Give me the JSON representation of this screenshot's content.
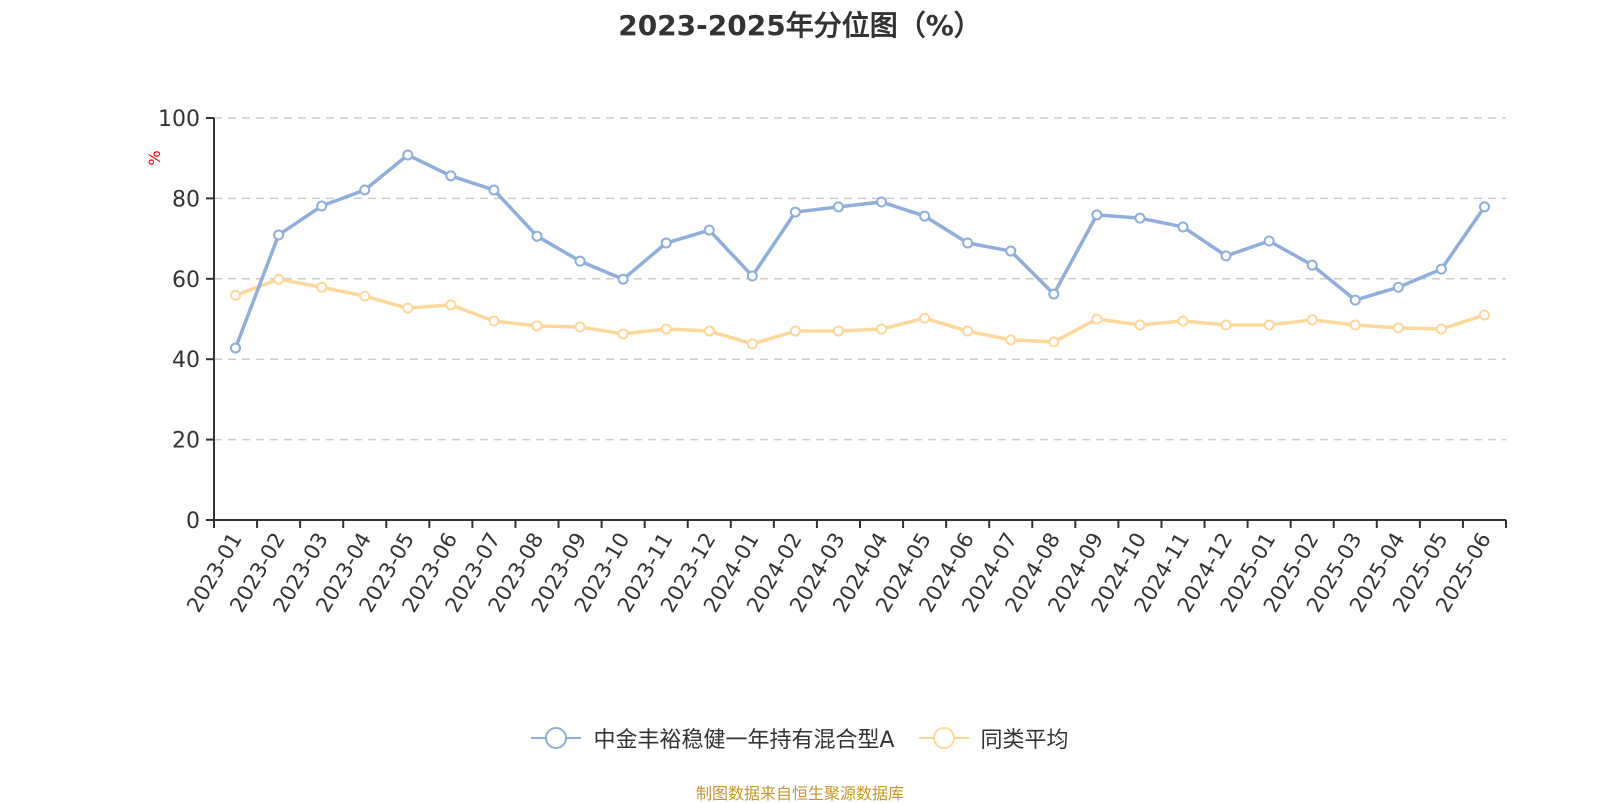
{
  "title": "2023-2025年分位图（%）",
  "y_unit_label": "%",
  "source_note": "制图数据来自恒生聚源数据库",
  "colors": {
    "series_a": "#8eaedc",
    "series_b": "#fdd89a",
    "grid": "#cccccc",
    "axis": "#333333",
    "unit_label": "#ff0000",
    "source": "#c8962a"
  },
  "legend": [
    {
      "name": "中金丰裕稳健一年持有混合型A",
      "icon": "circle-line-icon",
      "color": "#8eaedc"
    },
    {
      "name": "同类平均",
      "icon": "circle-line-icon",
      "color": "#fdd89a"
    }
  ],
  "chart_data": {
    "type": "line",
    "title": "2023-2025年分位图（%）",
    "xlabel": "",
    "ylabel": "%",
    "ylim": [
      0,
      100
    ],
    "yticks": [
      0,
      20,
      40,
      60,
      80,
      100
    ],
    "grid": true,
    "legend_position": "bottom",
    "categories": [
      "2023-01",
      "2023-02",
      "2023-03",
      "2023-04",
      "2023-05",
      "2023-06",
      "2023-07",
      "2023-08",
      "2023-09",
      "2023-10",
      "2023-11",
      "2023-12",
      "2024-01",
      "2024-02",
      "2024-03",
      "2024-04",
      "2024-05",
      "2024-06",
      "2024-07",
      "2024-08",
      "2024-09",
      "2024-10",
      "2024-11",
      "2024-12",
      "2025-01",
      "2025-02",
      "2025-03",
      "2025-04",
      "2025-05",
      "2025-06"
    ],
    "series": [
      {
        "name": "中金丰裕稳健一年持有混合型A",
        "values": [
          42.8,
          70.9,
          78.1,
          82.1,
          90.8,
          85.6,
          82.1,
          70.6,
          64.4,
          59.9,
          68.9,
          72.1,
          60.7,
          76.6,
          77.9,
          79.1,
          75.6,
          68.9,
          66.9,
          56.2,
          75.9,
          75.1,
          72.9,
          65.7,
          69.4,
          63.4,
          54.7,
          57.9,
          62.4,
          77.9
        ]
      },
      {
        "name": "同类平均",
        "values": [
          55.9,
          59.9,
          57.9,
          55.7,
          52.7,
          53.5,
          49.5,
          48.3,
          48.0,
          46.3,
          47.5,
          47.0,
          43.8,
          47.0,
          47.0,
          47.5,
          50.2,
          47.0,
          44.8,
          44.3,
          50.0,
          48.5,
          49.5,
          48.5,
          48.5,
          49.8,
          48.5,
          47.8,
          47.5,
          51.0
        ]
      }
    ]
  }
}
